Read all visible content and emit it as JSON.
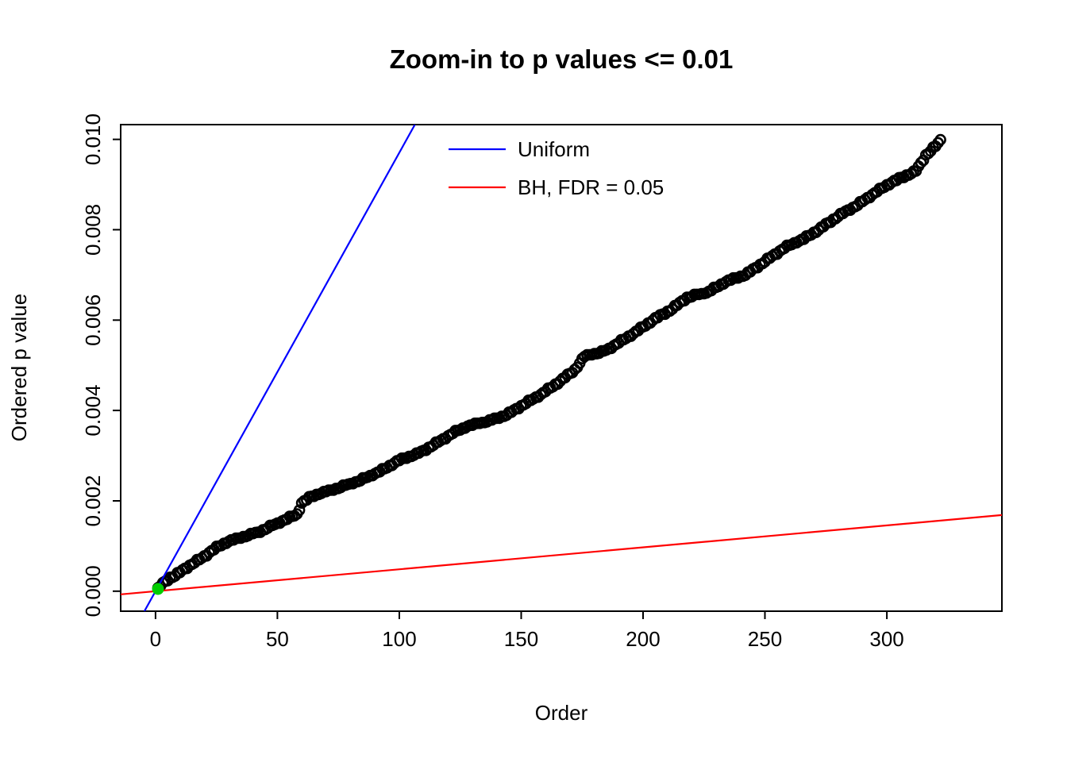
{
  "chart_data": {
    "type": "scatter",
    "title": "Zoom-in to p values <= 0.01",
    "xlabel": "Order",
    "ylabel": "Ordered p value",
    "xlim": [
      -14.3,
      347.2
    ],
    "ylim": [
      -0.000442,
      0.010326
    ],
    "x_ticks": [
      0,
      50,
      100,
      150,
      200,
      250,
      300
    ],
    "y_ticks": [
      "0.000",
      "0.002",
      "0.004",
      "0.006",
      "0.008",
      "0.010"
    ],
    "grid": false,
    "legend": {
      "position": "inside-top-center",
      "entries": [
        {
          "label": "Uniform",
          "color": "#0000FF",
          "type": "line"
        },
        {
          "label": "BH, FDR = 0.05",
          "color": "#FF0000",
          "type": "line"
        }
      ]
    },
    "lines": [
      {
        "name": "uniform-reference",
        "color": "#0000FF",
        "width": 2.2,
        "points": [
          [
            -4.55,
            -0.000442
          ],
          [
            106.4,
            0.010326
          ]
        ]
      },
      {
        "name": "bh-fdr-threshold",
        "color": "#FF0000",
        "width": 2.2,
        "points": [
          [
            -14.3,
            -6.94e-05
          ],
          [
            347.2,
            0.001685
          ]
        ]
      }
    ],
    "series": {
      "name": "ordered-p-values",
      "marker": "open-circle",
      "color": "#000000",
      "n_points": 322,
      "anchors": [
        [
          1,
          5e-05
        ],
        [
          2,
          0.00012
        ],
        [
          4,
          0.00022
        ],
        [
          6,
          0.0003
        ],
        [
          8,
          0.00034
        ],
        [
          10,
          0.00042
        ],
        [
          12,
          0.0005
        ],
        [
          15,
          0.0006
        ],
        [
          18,
          0.0007
        ],
        [
          22,
          0.00085
        ],
        [
          26,
          0.001
        ],
        [
          30,
          0.0011
        ],
        [
          36,
          0.0012
        ],
        [
          42,
          0.0013
        ],
        [
          48,
          0.00145
        ],
        [
          54,
          0.0016
        ],
        [
          58,
          0.0017
        ],
        [
          60,
          0.00195
        ],
        [
          64,
          0.0021
        ],
        [
          70,
          0.0022
        ],
        [
          76,
          0.0023
        ],
        [
          84,
          0.00245
        ],
        [
          92,
          0.00265
        ],
        [
          100,
          0.0029
        ],
        [
          108,
          0.00305
        ],
        [
          116,
          0.0033
        ],
        [
          122,
          0.0035
        ],
        [
          128,
          0.00365
        ],
        [
          136,
          0.00375
        ],
        [
          144,
          0.0039
        ],
        [
          150,
          0.0041
        ],
        [
          158,
          0.00435
        ],
        [
          166,
          0.00465
        ],
        [
          172,
          0.0049
        ],
        [
          176,
          0.0052
        ],
        [
          184,
          0.0053
        ],
        [
          190,
          0.0055
        ],
        [
          196,
          0.0057
        ],
        [
          204,
          0.006
        ],
        [
          212,
          0.00625
        ],
        [
          218,
          0.0065
        ],
        [
          226,
          0.0066
        ],
        [
          234,
          0.00685
        ],
        [
          242,
          0.007
        ],
        [
          250,
          0.0073
        ],
        [
          258,
          0.0076
        ],
        [
          266,
          0.0078
        ],
        [
          272,
          0.008
        ],
        [
          280,
          0.0083
        ],
        [
          288,
          0.00855
        ],
        [
          296,
          0.00885
        ],
        [
          302,
          0.00905
        ],
        [
          308,
          0.0092
        ],
        [
          312,
          0.0093
        ],
        [
          316,
          0.00965
        ],
        [
          320,
          0.00985
        ],
        [
          322,
          0.00998
        ]
      ]
    },
    "highlight_point": {
      "name": "significant-point",
      "x": 1,
      "y": 5e-05,
      "color": "#00CD00"
    }
  }
}
